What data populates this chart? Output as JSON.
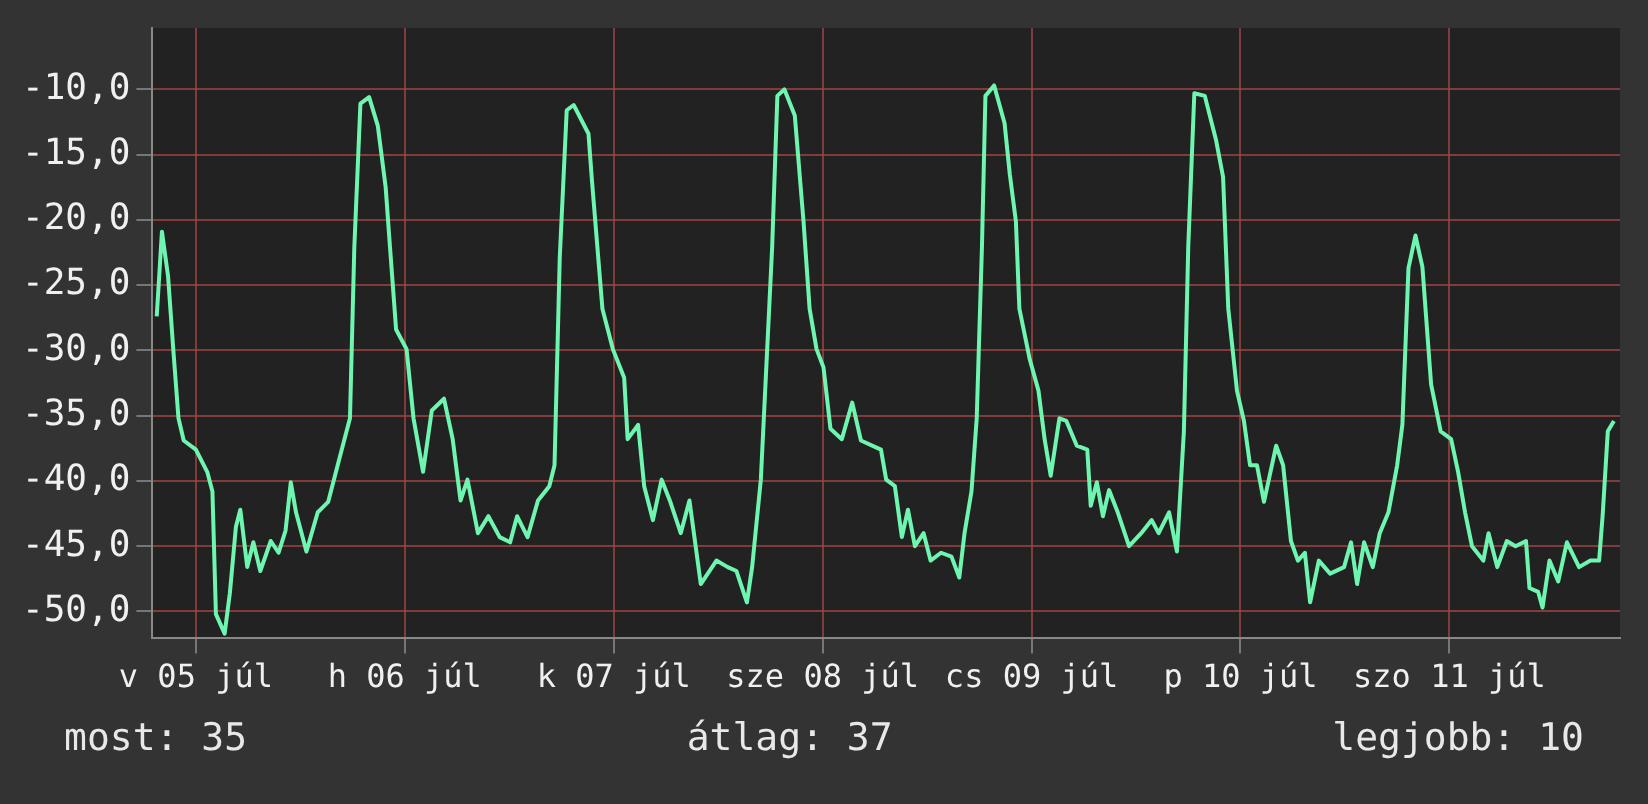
{
  "chart_data": {
    "type": "line",
    "x": [
      "--07-05T07:30",
      "--07-05T08:06",
      "--07-05T08:48",
      "--07-05T09:24",
      "--07-05T10:00",
      "--07-05T10:36",
      "--07-05T12:00",
      "--07-05T13:18",
      "--07-05T13:54",
      "--07-05T14:18",
      "--07-05T15:18",
      "--07-05T15:54",
      "--07-05T16:36",
      "--07-05T17:06",
      "--07-05T17:54",
      "--07-05T18:36",
      "--07-05T19:24",
      "--07-05T20:36",
      "--07-05T21:30",
      "--07-05T22:18",
      "--07-05T22:54",
      "--07-05T23:30",
      "--07-06T00:42",
      "--07-06T02:00",
      "--07-06T03:12",
      "--07-06T04:24",
      "--07-06T05:42",
      "--07-06T06:12",
      "--07-06T06:54",
      "--07-06T07:54",
      "--07-06T08:54",
      "--07-06T09:48",
      "--07-06T10:18",
      "--07-06T11:00",
      "--07-06T12:12",
      "--07-06T13:00",
      "--07-06T14:06",
      "--07-06T15:06",
      "--07-06T16:30",
      "--07-06T17:30",
      "--07-06T18:24",
      "--07-06T19:12",
      "--07-06T20:24",
      "--07-06T21:36",
      "--07-06T22:54",
      "--07-07T00:06",
      "--07-07T00:54",
      "--07-07T02:06",
      "--07-07T03:18",
      "--07-07T04:36",
      "--07-07T05:12",
      "--07-07T05:48",
      "--07-07T06:36",
      "--07-07T07:24",
      "--07-07T09:06",
      "--07-07T09:30",
      "--07-07T10:42",
      "--07-07T11:54",
      "--07-07T13:12",
      "--07-07T13:36",
      "--07-07T14:48",
      "--07-07T15:30",
      "--07-07T16:30",
      "--07-07T17:30",
      "--07-07T18:30",
      "--07-07T19:42",
      "--07-07T20:42",
      "--07-07T22:00",
      "--07-07T23:48",
      "--07-08T01:06",
      "--07-08T02:06",
      "--07-08T03:18",
      "--07-08T03:54",
      "--07-08T04:54",
      "--07-08T06:12",
      "--07-08T06:48",
      "--07-08T07:36",
      "--07-08T08:48",
      "--07-08T09:48",
      "--07-08T10:30",
      "--07-08T11:18",
      "--07-08T12:06",
      "--07-08T12:54",
      "--07-08T14:12",
      "--07-08T15:24",
      "--07-08T16:24",
      "--07-08T18:42",
      "--07-08T19:18",
      "--07-08T20:18",
      "--07-08T21:06",
      "--07-08T21:48",
      "--07-08T22:36",
      "--07-08T23:36",
      "--07-09T00:24",
      "--07-09T01:36",
      "--07-09T02:48",
      "--07-09T03:42",
      "--07-09T04:18",
      "--07-09T05:06",
      "--07-09T05:42",
      "--07-09T06:18",
      "--07-09T06:42",
      "--07-09T07:42",
      "--07-09T08:54",
      "--07-09T09:30",
      "--07-09T10:12",
      "--07-09T10:36",
      "--07-09T11:48",
      "--07-09T12:48",
      "--07-09T13:30",
      "--07-09T14:12",
      "--07-09T15:12",
      "--07-09T16:00",
      "--07-09T17:12",
      "--07-09T18:24",
      "--07-09T18:48",
      "--07-09T19:30",
      "--07-09T20:12",
      "--07-09T20:54",
      "--07-09T21:54",
      "--07-09T23:12",
      "--07-10T00:36",
      "--07-10T01:48",
      "--07-10T02:36",
      "--07-10T03:48",
      "--07-10T04:42",
      "--07-10T05:30",
      "--07-10T06:00",
      "--07-10T06:42",
      "--07-10T07:54",
      "--07-10T09:12",
      "--07-10T10:00",
      "--07-10T10:36",
      "--07-10T11:36",
      "--07-10T12:24",
      "--07-10T13:06",
      "--07-10T13:54",
      "--07-10T14:42",
      "--07-10T16:06",
      "--07-10T16:54",
      "--07-10T17:48",
      "--07-10T18:36",
      "--07-10T19:24",
      "--07-10T20:00",
      "--07-10T21:00",
      "--07-10T22:18",
      "--07-10T23:54",
      "--07-11T00:42",
      "--07-11T01:24",
      "--07-11T02:12",
      "--07-11T03:12",
      "--07-11T04:00",
      "--07-11T05:00",
      "--07-11T06:00",
      "--07-11T06:36",
      "--07-11T07:18",
      "--07-11T08:06",
      "--07-11T08:54",
      "--07-11T09:54",
      "--07-11T11:00",
      "--07-11T12:12",
      "--07-11T13:00",
      "--07-11T13:48",
      "--07-11T14:36",
      "--07-11T15:54",
      "--07-11T16:30",
      "--07-11T17:30",
      "--07-11T18:36",
      "--07-11T19:36",
      "--07-11T20:48",
      "--07-11T21:12",
      "--07-11T22:12",
      "--07-11T22:42",
      "--07-11T23:30",
      "--07-12T00:30",
      "--07-12T01:30",
      "--07-12T02:54",
      "--07-12T04:12",
      "--07-12T05:12",
      "--07-12T05:36",
      "--07-12T06:12",
      "--07-12T06:54"
    ],
    "series": [
      {
        "color": "#6ef5b0",
        "values": [
          -27.4,
          -20.9,
          -24.3,
          -29.9,
          -35.2,
          -36.9,
          -37.6,
          -39.3,
          -40.8,
          -50.2,
          -51.7,
          -48.6,
          -43.5,
          -42.2,
          -46.6,
          -44.7,
          -46.9,
          -44.6,
          -45.5,
          -43.8,
          -40.1,
          -42.4,
          -45.4,
          -42.4,
          -41.6,
          -38.5,
          -35.2,
          -22.1,
          -11.1,
          -10.6,
          -12.8,
          -17.5,
          -22.1,
          -28.4,
          -29.9,
          -35.2,
          -39.3,
          -34.6,
          -33.7,
          -36.8,
          -41.5,
          -39.9,
          -44.0,
          -42.7,
          -44.3,
          -44.7,
          -42.7,
          -44.3,
          -41.5,
          -40.4,
          -38.8,
          -22.9,
          -11.6,
          -11.2,
          -13.4,
          -17.0,
          -26.8,
          -29.9,
          -32.1,
          -36.8,
          -35.7,
          -40.4,
          -43.0,
          -39.9,
          -41.6,
          -44.0,
          -41.5,
          -47.9,
          -46.1,
          -46.6,
          -46.9,
          -49.3,
          -46.6,
          -39.9,
          -22.1,
          -10.5,
          -10.0,
          -12.0,
          -20.1,
          -26.8,
          -29.9,
          -31.3,
          -36.0,
          -36.8,
          -34.0,
          -36.9,
          -37.6,
          -39.9,
          -40.4,
          -44.3,
          -42.2,
          -45.0,
          -44.0,
          -46.1,
          -45.5,
          -45.8,
          -47.4,
          -44.0,
          -40.8,
          -35.2,
          -22.1,
          -10.5,
          -9.7,
          -12.6,
          -16.5,
          -20.1,
          -26.8,
          -30.7,
          -33.1,
          -36.8,
          -39.6,
          -35.2,
          -35.4,
          -37.3,
          -37.6,
          -41.9,
          -40.1,
          -42.7,
          -40.7,
          -42.4,
          -45.0,
          -44.0,
          -43.0,
          -44.0,
          -42.4,
          -45.4,
          -36.2,
          -22.1,
          -10.3,
          -10.5,
          -13.9,
          -16.7,
          -26.8,
          -33.1,
          -35.4,
          -38.8,
          -38.8,
          -41.6,
          -37.3,
          -38.8,
          -44.6,
          -46.1,
          -45.5,
          -49.3,
          -46.1,
          -47.1,
          -46.6,
          -44.7,
          -47.9,
          -44.7,
          -46.6,
          -44.0,
          -42.4,
          -38.8,
          -35.7,
          -23.7,
          -21.2,
          -23.6,
          -32.6,
          -36.2,
          -36.8,
          -39.3,
          -42.4,
          -45.0,
          -46.1,
          -44.0,
          -46.6,
          -44.6,
          -45.0,
          -44.6,
          -48.2,
          -48.5,
          -49.7,
          -46.1,
          -47.7,
          -44.7,
          -46.6,
          -46.1,
          -46.1,
          -42.7,
          -36.2,
          -35.4
        ]
      }
    ],
    "xlim": [
      "--07-05T07:00",
      "--07-12T07:36"
    ],
    "xticks": [
      {
        "value": "--07-05T12:00",
        "label": "v 05 júl"
      },
      {
        "value": "--07-06T12:00",
        "label": "h 06 júl"
      },
      {
        "value": "--07-07T12:00",
        "label": "k 07 júl"
      },
      {
        "value": "--07-08T12:00",
        "label": "sze 08 júl"
      },
      {
        "value": "--07-09T12:00",
        "label": "cs 09 júl"
      },
      {
        "value": "--07-10T12:00",
        "label": "p 10 júl"
      },
      {
        "value": "--07-11T12:00",
        "label": "szo 11 júl"
      }
    ],
    "ylim": [
      -52,
      -5.3
    ],
    "yticks": [
      {
        "value": -50,
        "label": "-50,0"
      },
      {
        "value": -45,
        "label": "-45,0"
      },
      {
        "value": -40,
        "label": "-40,0"
      },
      {
        "value": -35,
        "label": "-35,0"
      },
      {
        "value": -30,
        "label": "-30,0"
      },
      {
        "value": -25,
        "label": "-25,0"
      },
      {
        "value": -20,
        "label": "-20,0"
      },
      {
        "value": -15,
        "label": "-15,0"
      },
      {
        "value": -10,
        "label": "-10,0"
      }
    ],
    "grid": true,
    "legend": false,
    "marker": "none",
    "line_style": "solid",
    "annotations": [
      "most: 35",
      "átlag: 37",
      "legjobb: 10"
    ]
  }
}
